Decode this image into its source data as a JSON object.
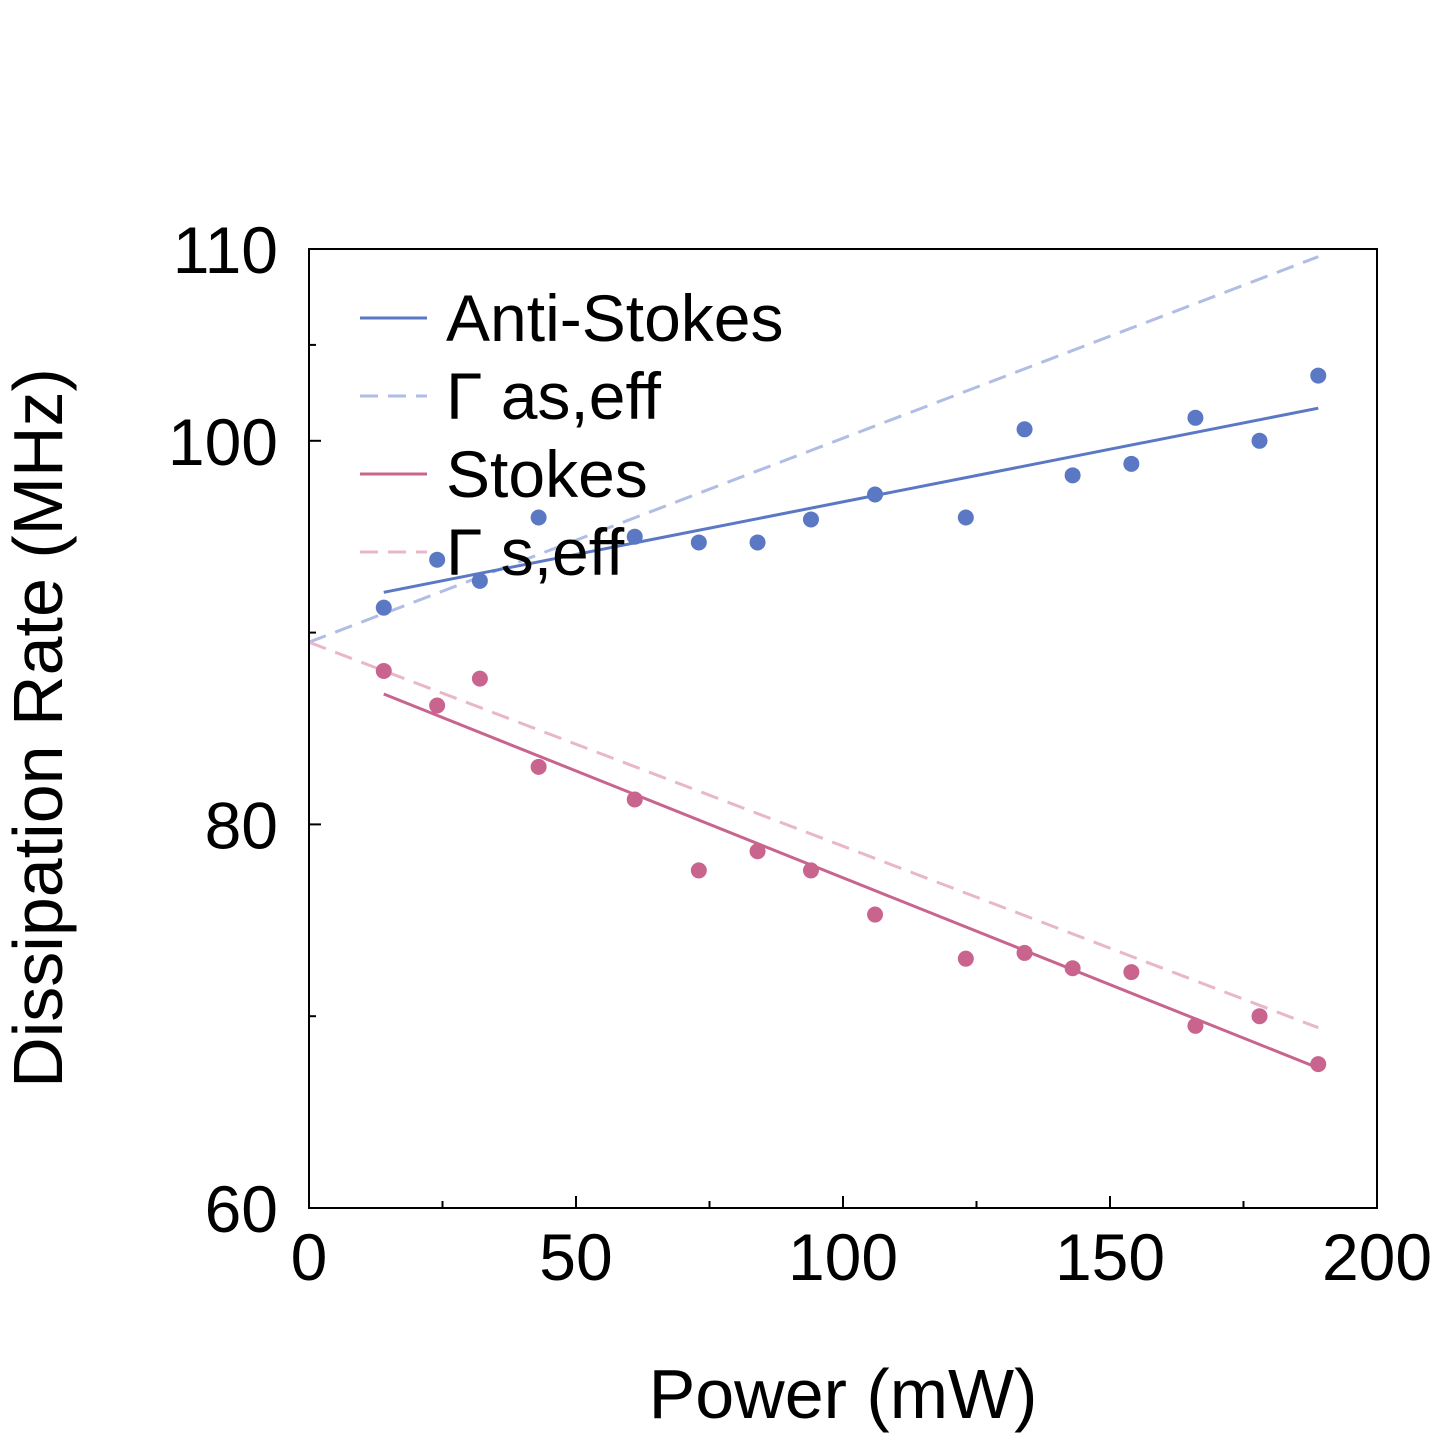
{
  "chart_data": {
    "type": "scatter",
    "xlabel": "Power (mW)",
    "ylabel": "Dissipation Rate (MHz)",
    "xlim": [
      0,
      200
    ],
    "ylim": [
      60,
      110
    ],
    "xticks": [
      0,
      50,
      100,
      150,
      200
    ],
    "xtick_labels": [
      "0",
      "50",
      "100",
      "150",
      "200"
    ],
    "xminor": [
      25,
      75,
      125,
      175
    ],
    "yticks": [
      60,
      80,
      100,
      110
    ],
    "ytick_labels": [
      "60",
      "80",
      "100",
      "110"
    ],
    "yminor": [
      70,
      90,
      105
    ],
    "grid": false,
    "legend_position": "top-left",
    "legend": [
      "Anti-Stokes",
      "Γ as,eff",
      "Stokes",
      "Γ s,eff"
    ],
    "series": [
      {
        "name": "Anti-Stokes",
        "kind": "points",
        "color": "#5b78c5",
        "x": [
          14,
          24,
          32,
          43,
          61,
          73,
          84,
          94,
          106,
          123,
          134,
          143,
          154,
          166,
          178,
          189
        ],
        "y": [
          91.3,
          93.8,
          92.7,
          96.0,
          95.0,
          94.7,
          94.7,
          95.9,
          97.2,
          96.0,
          100.6,
          98.2,
          98.8,
          101.2,
          100.0,
          103.4
        ]
      },
      {
        "name": "Anti-Stokes",
        "kind": "fit",
        "color": "#5b78c5",
        "x": [
          14,
          189
        ],
        "y": [
          92.1,
          101.7
        ]
      },
      {
        "name": "Γ as,eff",
        "kind": "dashed",
        "color": "#b0bde4",
        "x": [
          0,
          189
        ],
        "y": [
          89.5,
          109.6
        ]
      },
      {
        "name": "Stokes",
        "kind": "points",
        "color": "#c9648f",
        "x": [
          14,
          24,
          32,
          43,
          61,
          73,
          84,
          94,
          106,
          123,
          134,
          143,
          154,
          166,
          178,
          189
        ],
        "y": [
          88.0,
          86.2,
          87.6,
          83.0,
          81.3,
          77.6,
          78.6,
          77.6,
          75.3,
          73.0,
          73.3,
          72.5,
          72.3,
          69.5,
          70.0,
          67.5
        ]
      },
      {
        "name": "Stokes",
        "kind": "fit",
        "color": "#c9648f",
        "x": [
          14,
          189
        ],
        "y": [
          86.8,
          67.3
        ]
      },
      {
        "name": "Γ s,eff",
        "kind": "dashed",
        "color": "#e8b7c8",
        "x": [
          0,
          189
        ],
        "y": [
          89.5,
          69.4
        ]
      }
    ]
  }
}
